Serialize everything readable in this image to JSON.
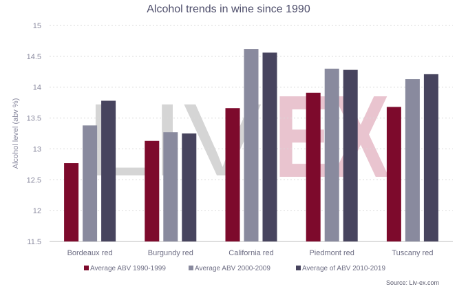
{
  "chart_data": {
    "type": "bar",
    "title": "Alcohol trends in wine since 1990",
    "ylabel": "Alcohol level (abv %)",
    "xlabel": "",
    "ylim": [
      11.5,
      15
    ],
    "yticks": [
      11.5,
      12,
      12.5,
      13,
      13.5,
      14,
      14.5,
      15
    ],
    "categories": [
      "Bordeaux red",
      "Burgundy red",
      "California red",
      "Piedmont red",
      "Tuscany red"
    ],
    "series": [
      {
        "name": "Average ABV 1990-1999",
        "color": "#7d0a2c",
        "values": [
          12.77,
          13.13,
          13.66,
          13.91,
          13.68
        ]
      },
      {
        "name": "Average ABV 2000-2009",
        "color": "#898a9e",
        "values": [
          13.38,
          13.27,
          14.62,
          14.3,
          14.13
        ]
      },
      {
        "name": "Average of ABV 2010-2019",
        "color": "#47445e",
        "values": [
          13.78,
          13.25,
          14.56,
          14.28,
          14.21
        ]
      }
    ],
    "grid": true,
    "legend_position": "bottom"
  },
  "watermark": {
    "text_left": "LIV",
    "text_right": "EX",
    "colors": [
      "#d5d5d5",
      "#e9c4cf"
    ]
  },
  "source": "Source: Liv-ex.com"
}
